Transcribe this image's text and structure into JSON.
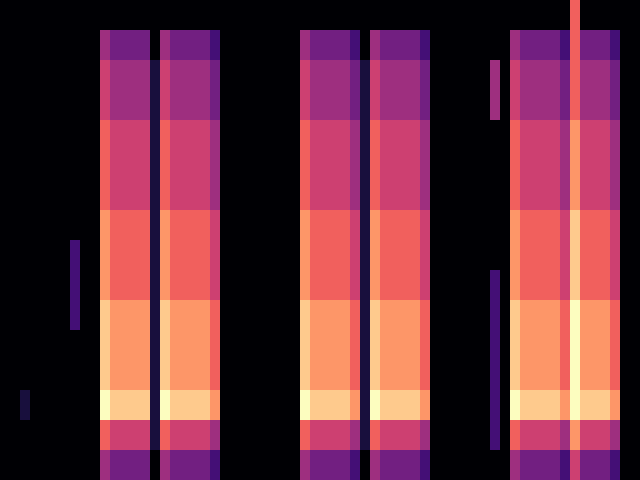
{
  "chart_data": {
    "type": "heatmap",
    "color": "magma",
    "color_range": [
      0,
      9
    ],
    "tick_labels": false,
    "cells": [
      [
        0,
        0,
        0,
        0,
        0,
        0,
        0,
        0,
        0,
        0,
        0,
        0,
        0,
        0,
        0,
        0,
        0,
        0,
        0,
        0,
        0,
        0,
        0,
        0,
        0,
        0,
        0,
        0,
        0,
        0,
        0,
        0,
        0,
        0,
        0,
        0,
        0,
        0,
        0,
        0,
        0,
        0,
        0,
        0,
        0,
        0,
        0,
        0,
        0,
        0,
        0,
        0,
        0,
        0,
        0,
        0,
        0,
        6,
        0,
        0,
        0,
        0,
        0,
        0
      ],
      [
        0,
        0,
        0,
        0,
        0,
        0,
        0,
        0,
        0,
        0,
        4,
        3,
        3,
        3,
        3,
        0,
        4,
        3,
        3,
        3,
        3,
        2,
        0,
        0,
        0,
        0,
        0,
        0,
        0,
        0,
        4,
        3,
        3,
        3,
        3,
        2,
        0,
        4,
        3,
        3,
        3,
        3,
        2,
        0,
        0,
        0,
        0,
        0,
        0,
        0,
        0,
        4,
        3,
        3,
        3,
        3,
        2,
        6,
        3,
        3,
        3,
        2,
        0,
        0
      ],
      [
        0,
        0,
        0,
        0,
        0,
        0,
        0,
        0,
        0,
        0,
        5,
        4,
        4,
        4,
        4,
        1,
        5,
        4,
        4,
        4,
        4,
        3,
        0,
        0,
        0,
        0,
        0,
        0,
        0,
        0,
        5,
        4,
        4,
        4,
        4,
        3,
        1,
        5,
        4,
        4,
        4,
        4,
        3,
        0,
        0,
        0,
        0,
        0,
        0,
        4,
        0,
        5,
        4,
        4,
        4,
        4,
        3,
        6,
        4,
        4,
        4,
        3,
        0,
        0
      ],
      [
        0,
        0,
        0,
        0,
        0,
        0,
        0,
        0,
        0,
        0,
        5,
        4,
        4,
        4,
        4,
        1,
        5,
        4,
        4,
        4,
        4,
        3,
        0,
        0,
        0,
        0,
        0,
        0,
        0,
        0,
        5,
        4,
        4,
        4,
        4,
        3,
        1,
        5,
        4,
        4,
        4,
        4,
        3,
        0,
        0,
        0,
        0,
        0,
        0,
        4,
        0,
        5,
        4,
        4,
        4,
        4,
        3,
        6,
        4,
        4,
        4,
        3,
        0,
        0
      ],
      [
        0,
        0,
        0,
        0,
        0,
        0,
        0,
        0,
        0,
        0,
        6,
        5,
        5,
        5,
        5,
        1,
        6,
        5,
        5,
        5,
        5,
        4,
        0,
        0,
        0,
        0,
        0,
        0,
        0,
        0,
        6,
        5,
        5,
        5,
        5,
        4,
        1,
        6,
        5,
        5,
        5,
        5,
        4,
        0,
        0,
        0,
        0,
        0,
        0,
        0,
        0,
        6,
        5,
        5,
        5,
        5,
        4,
        7,
        5,
        5,
        5,
        4,
        0,
        0
      ],
      [
        0,
        0,
        0,
        0,
        0,
        0,
        0,
        0,
        0,
        0,
        6,
        5,
        5,
        5,
        5,
        1,
        6,
        5,
        5,
        5,
        5,
        4,
        0,
        0,
        0,
        0,
        0,
        0,
        0,
        0,
        6,
        5,
        5,
        5,
        5,
        4,
        1,
        6,
        5,
        5,
        5,
        5,
        4,
        0,
        0,
        0,
        0,
        0,
        0,
        0,
        0,
        6,
        5,
        5,
        5,
        5,
        4,
        7,
        5,
        5,
        5,
        4,
        0,
        0
      ],
      [
        0,
        0,
        0,
        0,
        0,
        0,
        0,
        0,
        0,
        0,
        6,
        5,
        5,
        5,
        5,
        1,
        6,
        5,
        5,
        5,
        5,
        4,
        0,
        0,
        0,
        0,
        0,
        0,
        0,
        0,
        6,
        5,
        5,
        5,
        5,
        4,
        1,
        6,
        5,
        5,
        5,
        5,
        4,
        0,
        0,
        0,
        0,
        0,
        0,
        0,
        0,
        6,
        5,
        5,
        5,
        5,
        4,
        7,
        5,
        5,
        5,
        4,
        0,
        0
      ],
      [
        0,
        0,
        0,
        0,
        0,
        0,
        0,
        0,
        0,
        0,
        7,
        6,
        6,
        6,
        6,
        1,
        7,
        6,
        6,
        6,
        6,
        5,
        0,
        0,
        0,
        0,
        0,
        0,
        0,
        0,
        7,
        6,
        6,
        6,
        6,
        5,
        1,
        7,
        6,
        6,
        6,
        6,
        5,
        0,
        0,
        0,
        0,
        0,
        0,
        0,
        0,
        7,
        6,
        6,
        6,
        6,
        5,
        8,
        6,
        6,
        6,
        5,
        0,
        0
      ],
      [
        0,
        0,
        0,
        0,
        0,
        0,
        0,
        2,
        0,
        0,
        7,
        6,
        6,
        6,
        6,
        1,
        7,
        6,
        6,
        6,
        6,
        5,
        0,
        0,
        0,
        0,
        0,
        0,
        0,
        0,
        7,
        6,
        6,
        6,
        6,
        5,
        1,
        7,
        6,
        6,
        6,
        6,
        5,
        0,
        0,
        0,
        0,
        0,
        0,
        0,
        0,
        7,
        6,
        6,
        6,
        6,
        5,
        8,
        6,
        6,
        6,
        5,
        0,
        0
      ],
      [
        0,
        0,
        0,
        0,
        0,
        0,
        0,
        2,
        0,
        0,
        7,
        6,
        6,
        6,
        6,
        1,
        7,
        6,
        6,
        6,
        6,
        5,
        0,
        0,
        0,
        0,
        0,
        0,
        0,
        0,
        7,
        6,
        6,
        6,
        6,
        5,
        1,
        7,
        6,
        6,
        6,
        6,
        5,
        0,
        0,
        0,
        0,
        0,
        0,
        2,
        0,
        7,
        6,
        6,
        6,
        6,
        5,
        8,
        6,
        6,
        6,
        5,
        0,
        0
      ],
      [
        0,
        0,
        0,
        0,
        0,
        0,
        0,
        2,
        0,
        0,
        8,
        7,
        7,
        7,
        7,
        1,
        8,
        7,
        7,
        7,
        7,
        6,
        0,
        0,
        0,
        0,
        0,
        0,
        0,
        0,
        8,
        7,
        7,
        7,
        7,
        6,
        1,
        8,
        7,
        7,
        7,
        7,
        6,
        0,
        0,
        0,
        0,
        0,
        0,
        2,
        0,
        8,
        7,
        7,
        7,
        7,
        6,
        9,
        7,
        7,
        7,
        6,
        0,
        0
      ],
      [
        0,
        0,
        0,
        0,
        0,
        0,
        0,
        0,
        0,
        0,
        8,
        7,
        7,
        7,
        7,
        1,
        8,
        7,
        7,
        7,
        7,
        6,
        0,
        0,
        0,
        0,
        0,
        0,
        0,
        0,
        8,
        7,
        7,
        7,
        7,
        6,
        1,
        8,
        7,
        7,
        7,
        7,
        6,
        0,
        0,
        0,
        0,
        0,
        0,
        2,
        0,
        8,
        7,
        7,
        7,
        7,
        6,
        9,
        7,
        7,
        7,
        6,
        0,
        0
      ],
      [
        0,
        0,
        0,
        0,
        0,
        0,
        0,
        0,
        0,
        0,
        8,
        7,
        7,
        7,
        7,
        1,
        8,
        7,
        7,
        7,
        7,
        6,
        0,
        0,
        0,
        0,
        0,
        0,
        0,
        0,
        8,
        7,
        7,
        7,
        7,
        6,
        1,
        8,
        7,
        7,
        7,
        7,
        6,
        0,
        0,
        0,
        0,
        0,
        0,
        2,
        0,
        8,
        7,
        7,
        7,
        7,
        6,
        9,
        7,
        7,
        7,
        6,
        0,
        0
      ],
      [
        0,
        0,
        1,
        0,
        0,
        0,
        0,
        0,
        0,
        0,
        9,
        8,
        8,
        8,
        8,
        1,
        9,
        8,
        8,
        8,
        8,
        7,
        0,
        0,
        0,
        0,
        0,
        0,
        0,
        0,
        9,
        8,
        8,
        8,
        8,
        7,
        1,
        9,
        8,
        8,
        8,
        8,
        7,
        0,
        0,
        0,
        0,
        0,
        0,
        2,
        0,
        9,
        8,
        8,
        8,
        8,
        7,
        9,
        8,
        8,
        8,
        7,
        0,
        0
      ],
      [
        0,
        0,
        0,
        0,
        0,
        0,
        0,
        0,
        0,
        0,
        6,
        5,
        5,
        5,
        5,
        1,
        6,
        5,
        5,
        5,
        5,
        4,
        0,
        0,
        0,
        0,
        0,
        0,
        0,
        0,
        6,
        5,
        5,
        5,
        5,
        4,
        1,
        6,
        5,
        5,
        5,
        5,
        4,
        0,
        0,
        0,
        0,
        0,
        0,
        2,
        0,
        6,
        5,
        5,
        5,
        5,
        4,
        7,
        5,
        5,
        5,
        4,
        0,
        0
      ],
      [
        0,
        0,
        0,
        0,
        0,
        0,
        0,
        0,
        0,
        0,
        4,
        3,
        3,
        3,
        3,
        0,
        4,
        3,
        3,
        3,
        3,
        2,
        0,
        0,
        0,
        0,
        0,
        0,
        0,
        0,
        4,
        3,
        3,
        3,
        3,
        2,
        0,
        4,
        3,
        3,
        3,
        3,
        2,
        0,
        0,
        0,
        0,
        0,
        0,
        0,
        0,
        4,
        3,
        3,
        3,
        3,
        2,
        5,
        3,
        3,
        3,
        2,
        0,
        0
      ]
    ]
  }
}
